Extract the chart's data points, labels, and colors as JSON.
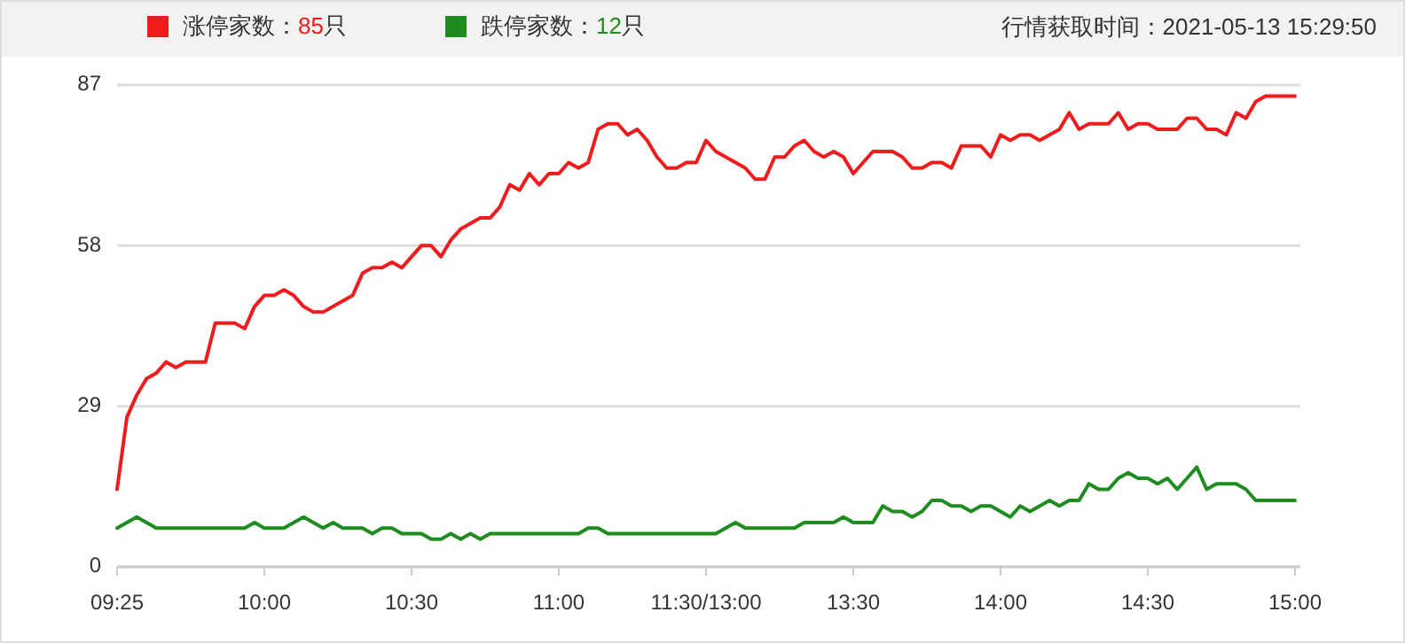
{
  "chart_data": {
    "type": "line",
    "subtitle": "行情获取时间：2021-05-13 15:29:50",
    "categories": [
      "09:25",
      null,
      null,
      null,
      null,
      null,
      null,
      null,
      null,
      null,
      null,
      null,
      null,
      null,
      null,
      "10:00",
      null,
      null,
      null,
      null,
      null,
      null,
      null,
      null,
      null,
      null,
      null,
      null,
      null,
      null,
      "10:30",
      null,
      null,
      null,
      null,
      null,
      null,
      null,
      null,
      null,
      null,
      null,
      null,
      null,
      null,
      "11:00",
      null,
      null,
      null,
      null,
      null,
      null,
      null,
      null,
      null,
      null,
      null,
      null,
      null,
      null,
      "11:30/13:00",
      null,
      null,
      null,
      null,
      null,
      null,
      null,
      null,
      null,
      null,
      null,
      null,
      null,
      null,
      "13:30",
      null,
      null,
      null,
      null,
      null,
      null,
      null,
      null,
      null,
      null,
      null,
      null,
      null,
      null,
      "14:00",
      null,
      null,
      null,
      null,
      null,
      null,
      null,
      null,
      null,
      null,
      null,
      null,
      null,
      null,
      "14:30",
      null,
      null,
      null,
      null,
      null,
      null,
      null,
      null,
      null,
      null,
      null,
      null,
      null,
      null,
      "15:00"
    ],
    "ylim": [
      0,
      87
    ],
    "yticks": [
      0,
      29,
      58,
      87
    ],
    "grid": "y",
    "legend": "top",
    "line_style": "solid",
    "marker": "none",
    "series": [
      {
        "name": "涨停家数：85只",
        "color": "#ee1c1c",
        "values": [
          14,
          27,
          31,
          34,
          35,
          37,
          36,
          37,
          37,
          37,
          44,
          44,
          44,
          43,
          47,
          49,
          49,
          50,
          49,
          47,
          46,
          46,
          47,
          48,
          49,
          53,
          54,
          54,
          55,
          54,
          56,
          58,
          58,
          56,
          59,
          61,
          62,
          63,
          63,
          65,
          69,
          68,
          71,
          69,
          71,
          71,
          73,
          72,
          73,
          79,
          80,
          80,
          78,
          79,
          77,
          74,
          72,
          72,
          73,
          73,
          77,
          75,
          74,
          73,
          72,
          70,
          70,
          74,
          74,
          76,
          77,
          75,
          74,
          75,
          74,
          71,
          73,
          75,
          75,
          75,
          74,
          72,
          72,
          73,
          73,
          72,
          76,
          76,
          76,
          74,
          78,
          77,
          78,
          78,
          77,
          78,
          79,
          82,
          79,
          80,
          80,
          80,
          82,
          79,
          80,
          80,
          79,
          79,
          79,
          81,
          81,
          79,
          79,
          78,
          82,
          81,
          84,
          85,
          85,
          85,
          85
        ]
      },
      {
        "name": "跌停家数：12只",
        "color": "#1e8c1e",
        "values": [
          7,
          8,
          9,
          8,
          7,
          7,
          7,
          7,
          7,
          7,
          7,
          7,
          7,
          7,
          8,
          7,
          7,
          7,
          8,
          9,
          8,
          7,
          8,
          7,
          7,
          7,
          6,
          7,
          7,
          6,
          6,
          6,
          5,
          5,
          6,
          5,
          6,
          5,
          6,
          6,
          6,
          6,
          6,
          6,
          6,
          6,
          6,
          6,
          7,
          7,
          6,
          6,
          6,
          6,
          6,
          6,
          6,
          6,
          6,
          6,
          6,
          6,
          7,
          8,
          7,
          7,
          7,
          7,
          7,
          7,
          8,
          8,
          8,
          8,
          9,
          8,
          8,
          8,
          11,
          10,
          10,
          9,
          10,
          12,
          12,
          11,
          11,
          10,
          11,
          11,
          10,
          9,
          11,
          10,
          11,
          12,
          11,
          12,
          12,
          15,
          14,
          14,
          16,
          17,
          16,
          16,
          15,
          16,
          14,
          16,
          18,
          14,
          15,
          15,
          15,
          14,
          12,
          12,
          12,
          12,
          12
        ]
      }
    ]
  }
}
